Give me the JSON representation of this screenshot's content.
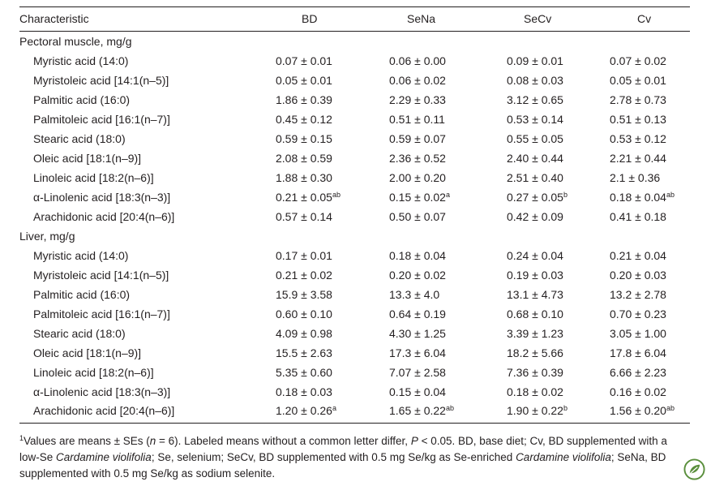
{
  "table": {
    "headers": [
      "Characteristic",
      "BD",
      "SeNa",
      "SeCv",
      "Cv"
    ],
    "sections": [
      {
        "title": "Pectoral muscle, mg/g",
        "rows": [
          {
            "label": "Myristic acid (14:0)",
            "cells": [
              "0.07 ± 0.01",
              "0.06 ± 0.00",
              "0.09 ± 0.01",
              "0.07 ± 0.02"
            ]
          },
          {
            "label": "Myristoleic acid [14:1(n–5)]",
            "cells": [
              "0.05 ± 0.01",
              "0.06 ± 0.02",
              "0.08 ± 0.03",
              "0.05 ± 0.01"
            ]
          },
          {
            "label": "Palmitic acid (16:0)",
            "cells": [
              "1.86 ± 0.39",
              "2.29 ± 0.33",
              "3.12 ± 0.65",
              "2.78 ± 0.73"
            ]
          },
          {
            "label": "Palmitoleic acid [16:1(n–7)]",
            "cells": [
              "0.45 ± 0.12",
              "0.51 ± 0.11",
              "0.53 ± 0.14",
              "0.51 ± 0.13"
            ]
          },
          {
            "label": "Stearic acid (18:0)",
            "cells": [
              "0.59 ± 0.15",
              "0.59 ± 0.07",
              "0.55 ± 0.05",
              "0.53 ± 0.12"
            ]
          },
          {
            "label": "Oleic acid [18:1(n–9)]",
            "cells": [
              "2.08 ± 0.59",
              "2.36 ± 0.52",
              "2.40 ± 0.44",
              "2.21 ± 0.44"
            ]
          },
          {
            "label": "Linoleic acid [18:2(n–6)]",
            "cells": [
              "1.88 ± 0.30",
              "2.00 ± 0.20",
              "2.51 ± 0.40",
              "2.1 ± 0.36"
            ]
          },
          {
            "label": "α-Linolenic acid [18:3(n–3)]",
            "cells": [
              {
                "text": "0.21 ± 0.05",
                "sup": "ab"
              },
              {
                "text": "0.15 ± 0.02",
                "sup": "a"
              },
              {
                "text": "0.27 ± 0.05",
                "sup": "b"
              },
              {
                "text": "0.18 ± 0.04",
                "sup": "ab"
              }
            ]
          },
          {
            "label": "Arachidonic acid [20:4(n–6)]",
            "cells": [
              "0.57 ± 0.14",
              "0.50 ± 0.07",
              "0.42 ± 0.09",
              "0.41 ± 0.18"
            ]
          }
        ]
      },
      {
        "title": "Liver, mg/g",
        "rows": [
          {
            "label": "Myristic acid (14:0)",
            "cells": [
              "0.17 ± 0.01",
              "0.18 ± 0.04",
              "0.24 ± 0.04",
              "0.21 ± 0.04"
            ]
          },
          {
            "label": "Myristoleic acid [14:1(n–5)]",
            "cells": [
              "0.21 ± 0.02",
              "0.20 ± 0.02",
              "0.19 ± 0.03",
              "0.20 ± 0.03"
            ]
          },
          {
            "label": "Palmitic acid (16:0)",
            "cells": [
              "15.9 ± 3.58",
              "13.3 ± 4.0",
              "13.1 ± 4.73",
              "13.2 ± 2.78"
            ]
          },
          {
            "label": "Palmitoleic acid [16:1(n–7)]",
            "cells": [
              "0.60 ± 0.10",
              "0.64 ± 0.19",
              "0.68 ± 0.10",
              "0.70 ± 0.23"
            ]
          },
          {
            "label": "Stearic acid (18:0)",
            "cells": [
              "4.09 ± 0.98",
              "4.30 ± 1.25",
              "3.39 ± 1.23",
              "3.05 ± 1.00"
            ]
          },
          {
            "label": "Oleic acid [18:1(n–9)]",
            "cells": [
              "15.5 ± 2.63",
              "17.3 ± 6.04",
              "18.2 ± 5.66",
              "17.8 ± 6.04"
            ]
          },
          {
            "label": "Linoleic acid [18:2(n–6)]",
            "cells": [
              "5.35 ± 0.60",
              "7.07 ± 2.58",
              "7.36 ± 0.39",
              "6.66 ± 2.23"
            ]
          },
          {
            "label": "α-Linolenic acid [18:3(n–3)]",
            "cells": [
              "0.18 ± 0.03",
              "0.15 ± 0.04",
              "0.18 ± 0.02",
              "0.16 ± 0.02"
            ]
          },
          {
            "label": "Arachidonic acid [20:4(n–6)]",
            "cells": [
              {
                "text": "1.20 ± 0.26",
                "sup": "a"
              },
              {
                "text": "1.65 ± 0.22",
                "sup": "ab"
              },
              {
                "text": "1.90 ± 0.22",
                "sup": "b"
              },
              {
                "text": "1.56 ± 0.20",
                "sup": "ab"
              }
            ]
          }
        ]
      }
    ]
  },
  "footnote": [
    {
      "sup": "1"
    },
    "Values are means ± SEs (",
    {
      "italic": "n"
    },
    " = 6). Labeled means without a common letter differ, ",
    {
      "italic": "P"
    },
    " < 0.05. BD, base diet; Cv, BD supplemented with a low-Se ",
    {
      "italic": "Cardamine violifolia"
    },
    "; Se, selenium; SeCv, BD supplemented with 0.5 mg Se/kg as Se-enriched ",
    {
      "italic": "Cardamine violifolia"
    },
    "; SeNa, BD supplemented with 0.5 mg Se/kg as sodium selenite."
  ]
}
